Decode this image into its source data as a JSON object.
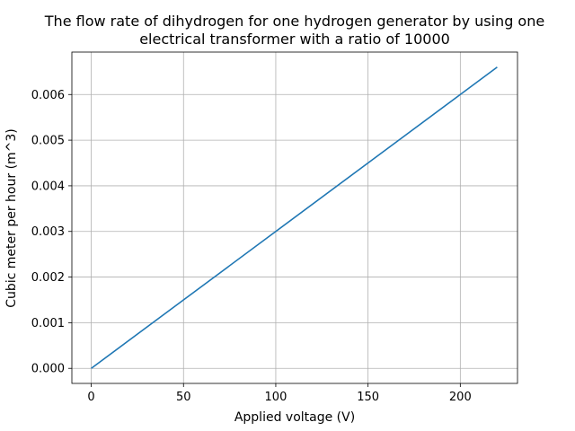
{
  "chart_data": {
    "type": "line",
    "title_lines": [
      "The flow rate of dihydrogen for one hydrogen generator by using one",
      "electrical transformer with a ratio of 10000"
    ],
    "xlabel": "Applied voltage (V)",
    "ylabel": "Cubic meter per hour (m^3)",
    "xlim": [
      -10.5,
      231
    ],
    "ylim": [
      -0.00033,
      0.00693
    ],
    "x_ticks": [
      0,
      50,
      100,
      150,
      200
    ],
    "x_tick_labels": [
      "0",
      "50",
      "100",
      "150",
      "200"
    ],
    "y_ticks": [
      0,
      0.001,
      0.002,
      0.003,
      0.004,
      0.005,
      0.006
    ],
    "y_tick_labels": [
      "0.000",
      "0.001",
      "0.002",
      "0.003",
      "0.004",
      "0.005",
      "0.006"
    ],
    "grid": true,
    "series": [
      {
        "color": "#1f77b4",
        "x": [
          0,
          50,
          100,
          150,
          200,
          220
        ],
        "y": [
          0,
          0.0015,
          0.003,
          0.0045,
          0.006,
          0.0066
        ]
      }
    ]
  }
}
